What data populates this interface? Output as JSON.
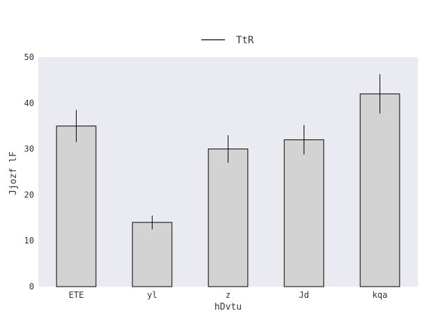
{
  "chart_data": {
    "type": "bar",
    "title": "",
    "xlabel": "hDvtu",
    "ylabel": "Jjozf lF",
    "categories": [
      "ETE",
      "yl",
      "z",
      "Jd",
      "kqa"
    ],
    "series": [
      {
        "name": "TtR",
        "values": [
          35,
          14,
          30,
          32,
          42
        ],
        "errors": [
          3.5,
          1.5,
          3.0,
          3.2,
          4.3
        ]
      }
    ],
    "ylim": [
      0,
      50
    ],
    "yticks": [
      0,
      10,
      20,
      30,
      40,
      50
    ],
    "legend": "top-center",
    "grid": false,
    "colors": {
      "bar_fill": "#d3d3d3",
      "bar_edge": "#000000",
      "plot_bg": "#eaeaf2",
      "errorbar": "#000000",
      "text": "#333333"
    }
  }
}
